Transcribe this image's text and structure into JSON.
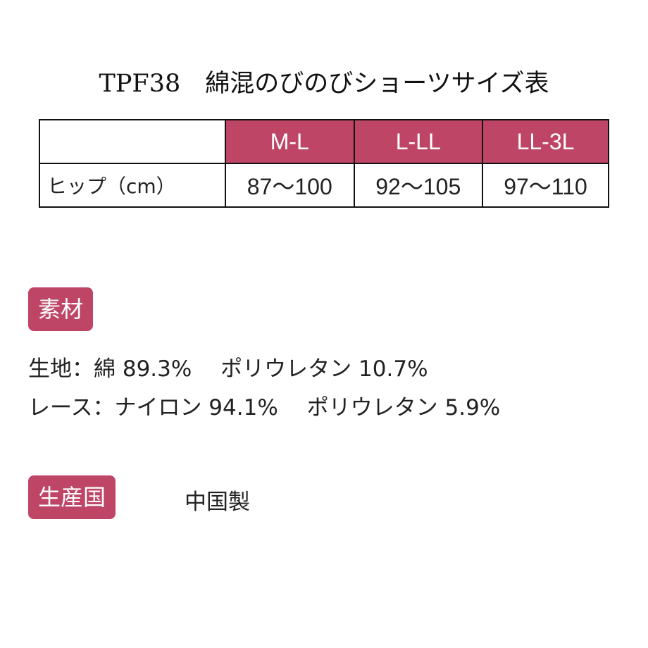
{
  "title": "TPF38　綿混のびのびショーツサイズ表",
  "size_table": {
    "headers": [
      "",
      "M-L",
      "L-LL",
      "LL-3L"
    ],
    "rows": [
      {
        "label": "ヒップ（cm）",
        "values": [
          "87〜100",
          "92〜105",
          "97〜110"
        ]
      }
    ]
  },
  "material": {
    "badge": "素材",
    "lines": [
      "生地：綿 89.3%　 ポリウレタン 10.7%",
      "レース：ナイロン 94.1%　 ポリウレタン 5.9%"
    ]
  },
  "origin": {
    "badge": "生産国",
    "value": "中国製"
  },
  "colors": {
    "accent": "#BE4566"
  }
}
